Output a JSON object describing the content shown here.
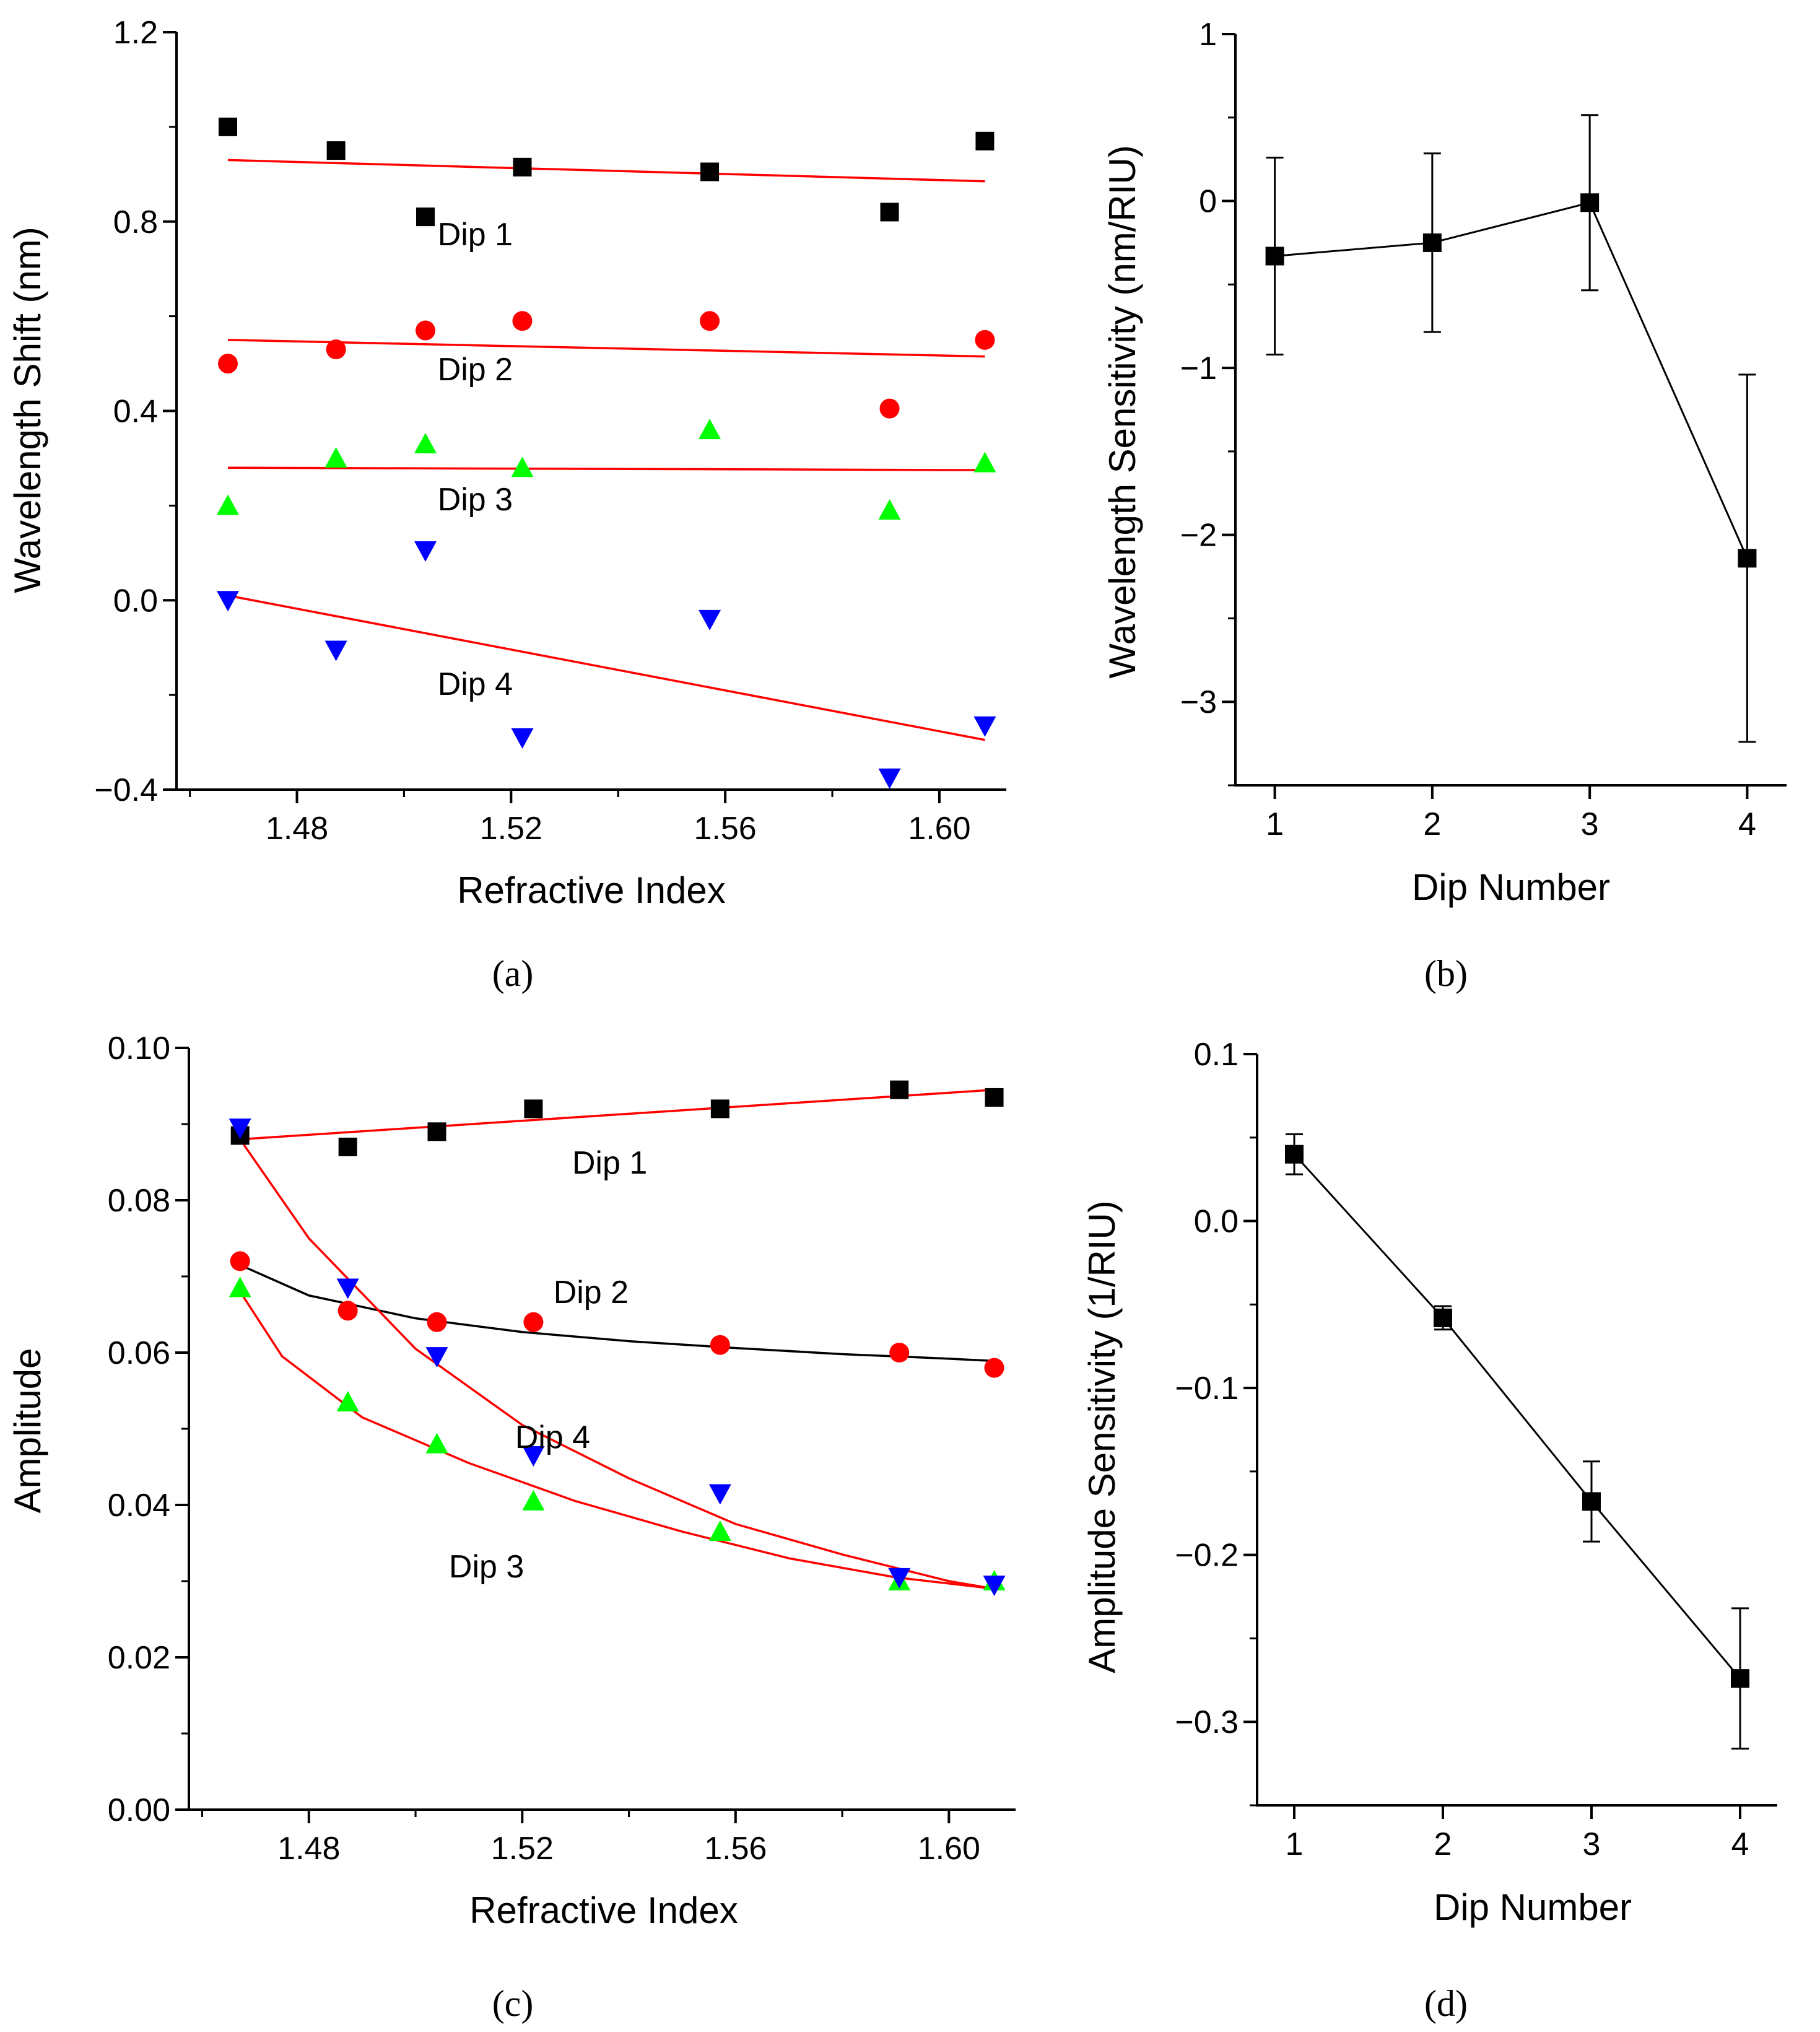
{
  "figure": {
    "panel_labels": {
      "a": "(a)",
      "b": "(b)",
      "c": "(c)",
      "d": "(d)"
    },
    "series_colors": {
      "dip1": "#000000",
      "dip2": "#ff0000",
      "dip3": "#00ff00",
      "dip4": "#0000ff",
      "fit": "#ff0000"
    }
  },
  "chart_data": [
    {
      "id": "a",
      "type": "scatter",
      "title": "",
      "xlabel": "Refractive Index",
      "ylabel": "Wavelength Shift (nm)",
      "xlim": [
        1.4575,
        1.6125
      ],
      "ylim": [
        -0.4,
        1.2
      ],
      "xticks": [
        1.48,
        1.52,
        1.56,
        1.6
      ],
      "xtick_labels": [
        "1.48",
        "1.52",
        "1.56",
        "1.60"
      ],
      "yticks": [
        -0.4,
        0.0,
        0.4,
        0.8,
        1.2
      ],
      "ytick_labels": [
        "−0.4",
        "0.0",
        "0.4",
        "0.8",
        "1.2"
      ],
      "x": [
        1.4671,
        1.4873,
        1.504,
        1.5221,
        1.5571,
        1.5907,
        1.6085
      ],
      "series": [
        {
          "name": "Dip 1",
          "marker": "square",
          "color": "#000000",
          "values": [
            1.0,
            0.95,
            0.81,
            0.915,
            0.905,
            0.82,
            0.97
          ]
        },
        {
          "name": "Dip 2",
          "marker": "circle",
          "color": "#ff0000",
          "values": [
            0.5,
            0.53,
            0.57,
            0.59,
            0.59,
            0.405,
            0.55
          ]
        },
        {
          "name": "Dip 3",
          "marker": "triangle-up",
          "color": "#00ff00",
          "values": [
            0.2,
            0.3,
            0.33,
            0.28,
            0.36,
            0.19,
            0.29
          ]
        },
        {
          "name": "Dip 4",
          "marker": "triangle-down",
          "color": "#0000ff",
          "values": [
            0.0,
            -0.105,
            0.105,
            -0.29,
            -0.04,
            -0.375,
            -0.265
          ]
        }
      ],
      "fits": [
        {
          "name": "Dip 1 fit",
          "type": "linear",
          "color": "#ff0000",
          "x": [
            1.4671,
            1.6085
          ],
          "y": [
            0.93,
            0.885
          ]
        },
        {
          "name": "Dip 2 fit",
          "type": "linear",
          "color": "#ff0000",
          "x": [
            1.4671,
            1.6085
          ],
          "y": [
            0.55,
            0.515
          ]
        },
        {
          "name": "Dip 3 fit",
          "type": "linear",
          "color": "#ff0000",
          "x": [
            1.4671,
            1.6085
          ],
          "y": [
            0.28,
            0.275
          ]
        },
        {
          "name": "Dip 4 fit",
          "type": "linear",
          "color": "#ff0000",
          "x": [
            1.4671,
            1.6085
          ],
          "y": [
            0.01,
            -0.295
          ]
        }
      ],
      "annotations": [
        {
          "text": "Dip 1",
          "x": 1.5133,
          "y": 0.75
        },
        {
          "text": "Dip 2",
          "x": 1.5133,
          "y": 0.465
        },
        {
          "text": "Dip 3",
          "x": 1.5133,
          "y": 0.19
        },
        {
          "text": "Dip 4",
          "x": 1.5133,
          "y": -0.2
        }
      ]
    },
    {
      "id": "b",
      "type": "line",
      "title": "",
      "xlabel": "Dip Number",
      "ylabel": "Wavelength Sensitivity (nm/RIU)",
      "xlim": [
        0.75,
        4.25
      ],
      "ylim": [
        -3.5,
        1.0
      ],
      "xticks": [
        1,
        2,
        3,
        4
      ],
      "xtick_labels": [
        "1",
        "2",
        "3",
        "4"
      ],
      "yticks": [
        -3,
        -2,
        -1,
        0,
        1
      ],
      "ytick_labels": [
        "−3",
        "−2",
        "−1",
        "0",
        "1"
      ],
      "x": [
        1,
        2,
        3,
        4
      ],
      "series": [
        {
          "name": "Wavelength sensitivity",
          "marker": "square",
          "color": "#000000",
          "values": [
            -0.33,
            -0.25,
            -0.01,
            -2.14
          ],
          "errors": [
            0.59,
            0.535,
            0.525,
            1.1
          ]
        }
      ]
    },
    {
      "id": "c",
      "type": "scatter",
      "title": "",
      "xlabel": "Refractive Index",
      "ylabel": "Amplitude",
      "xlim": [
        1.4575,
        1.6125
      ],
      "ylim": [
        0.0,
        0.1
      ],
      "xticks": [
        1.48,
        1.52,
        1.56,
        1.6
      ],
      "xtick_labels": [
        "1.48",
        "1.52",
        "1.56",
        "1.60"
      ],
      "yticks": [
        0.0,
        0.02,
        0.04,
        0.06,
        0.08,
        0.1
      ],
      "ytick_labels": [
        "0.00",
        "0.02",
        "0.04",
        "0.06",
        "0.08",
        "0.10"
      ],
      "x": [
        1.4671,
        1.4873,
        1.504,
        1.5221,
        1.5571,
        1.5907,
        1.6085
      ],
      "series": [
        {
          "name": "Dip 1",
          "marker": "square",
          "color": "#000000",
          "values": [
            0.0885,
            0.087,
            0.089,
            0.092,
            0.092,
            0.0945,
            0.0935
          ]
        },
        {
          "name": "Dip 2",
          "marker": "circle",
          "color": "#ff0000",
          "values": [
            0.072,
            0.0655,
            0.064,
            0.064,
            0.061,
            0.06,
            0.058
          ]
        },
        {
          "name": "Dip 3",
          "marker": "triangle-up",
          "color": "#00ff00",
          "values": [
            0.0685,
            0.0535,
            0.048,
            0.0405,
            0.0365,
            0.03,
            0.03
          ]
        },
        {
          "name": "Dip 4",
          "marker": "triangle-down",
          "color": "#0000ff",
          "values": [
            0.0895,
            0.0685,
            0.0595,
            0.0465,
            0.0415,
            0.0305,
            0.0295
          ]
        }
      ],
      "fits": [
        {
          "name": "Dip 1 fit",
          "type": "linear",
          "color": "#ff0000",
          "x": [
            1.4671,
            1.6085
          ],
          "y": [
            0.088,
            0.0945
          ]
        },
        {
          "name": "Dip 2 fit",
          "type": "curve",
          "color": "#000000",
          "x": [
            1.4671,
            1.48,
            1.5,
            1.52,
            1.54,
            1.56,
            1.58,
            1.6,
            1.6085
          ],
          "y": [
            0.0715,
            0.0675,
            0.0645,
            0.0627,
            0.0615,
            0.0606,
            0.0598,
            0.0592,
            0.0589
          ]
        },
        {
          "name": "Dip 3 fit",
          "type": "curve",
          "color": "#ff0000",
          "x": [
            1.4671,
            1.475,
            1.49,
            1.51,
            1.53,
            1.55,
            1.57,
            1.59,
            1.6085
          ],
          "y": [
            0.068,
            0.0595,
            0.0515,
            0.0455,
            0.0405,
            0.0365,
            0.033,
            0.0305,
            0.029
          ]
        },
        {
          "name": "Dip 4 fit",
          "type": "curve",
          "color": "#ff0000",
          "x": [
            1.4671,
            1.48,
            1.5,
            1.52,
            1.54,
            1.56,
            1.58,
            1.6,
            1.6085
          ],
          "y": [
            0.088,
            0.075,
            0.0605,
            0.0505,
            0.0435,
            0.0375,
            0.0335,
            0.03,
            0.029
          ]
        }
      ],
      "annotations": [
        {
          "text": "Dip 1",
          "x": 1.5364,
          "y": 0.0835
        },
        {
          "text": "Dip 2",
          "x": 1.5329,
          "y": 0.0665
        },
        {
          "text": "Dip 4",
          "x": 1.5257,
          "y": 0.0475
        },
        {
          "text": "Dip 3",
          "x": 1.5133,
          "y": 0.0305
        }
      ]
    },
    {
      "id": "d",
      "type": "line",
      "title": "",
      "xlabel": "Dip Number",
      "ylabel": "Amplitude Sensitivity (1/RIU)",
      "xlim": [
        0.75,
        4.25
      ],
      "ylim": [
        -0.35,
        0.1
      ],
      "xticks": [
        1,
        2,
        3,
        4
      ],
      "xtick_labels": [
        "1",
        "2",
        "3",
        "4"
      ],
      "yticks": [
        -0.3,
        -0.2,
        -0.1,
        0.0,
        0.1
      ],
      "ytick_labels": [
        "−0.3",
        "−0.2",
        "−0.1",
        "0.0",
        "0.1"
      ],
      "x": [
        1,
        2,
        3,
        4
      ],
      "series": [
        {
          "name": "Amplitude sensitivity",
          "marker": "square",
          "color": "#000000",
          "values": [
            0.04,
            -0.058,
            -0.168,
            -0.274
          ],
          "errors": [
            0.012,
            0.007,
            0.024,
            0.042
          ]
        }
      ]
    }
  ]
}
